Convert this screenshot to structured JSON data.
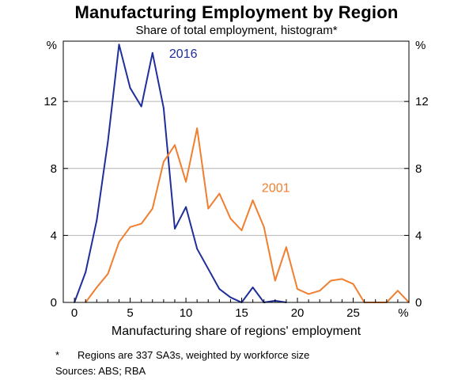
{
  "chart_data": {
    "type": "line",
    "title": "Manufacturing Employment by Region",
    "subtitle": "Share of total employment, histogram*",
    "xlabel": "Manufacturing share of regions' employment",
    "x_unit": "%",
    "y_unit": "%",
    "xlim": [
      -1,
      30
    ],
    "ylim": [
      0,
      15.6
    ],
    "x_ticks": [
      0,
      5,
      10,
      15,
      20,
      25
    ],
    "y_ticks": [
      0,
      4,
      8,
      12
    ],
    "grid": "horizontal",
    "series": [
      {
        "name": "2016",
        "color": "#1f2f9a",
        "x": [
          0,
          1,
          2,
          3,
          4,
          5,
          6,
          7,
          8,
          9,
          10,
          11,
          12,
          13,
          14,
          15,
          16,
          17,
          18,
          19
        ],
        "values": [
          0.0,
          1.8,
          4.9,
          9.6,
          15.4,
          12.8,
          11.7,
          14.9,
          11.6,
          4.4,
          5.7,
          3.2,
          2.0,
          0.8,
          0.3,
          0.0,
          0.9,
          0.0,
          0.1,
          0.0
        ]
      },
      {
        "name": "2001",
        "color": "#f07f2f",
        "x": [
          1,
          2,
          3,
          4,
          5,
          6,
          7,
          8,
          9,
          10,
          11,
          12,
          13,
          14,
          15,
          16,
          17,
          18,
          19,
          20,
          21,
          22,
          23,
          24,
          25,
          26,
          27,
          28,
          29,
          30
        ],
        "values": [
          0.0,
          0.9,
          1.7,
          3.6,
          4.5,
          4.7,
          5.6,
          8.4,
          9.4,
          7.2,
          10.4,
          5.6,
          6.5,
          5.0,
          4.3,
          6.1,
          4.5,
          1.3,
          3.3,
          0.8,
          0.5,
          0.7,
          1.3,
          1.4,
          1.1,
          0.0,
          0.0,
          0.0,
          0.7,
          0.0
        ]
      }
    ],
    "footnote_mark": "*",
    "footnote": "Regions are 337 SA3s, weighted by workforce size",
    "sources": "Sources:  ABS; RBA"
  }
}
